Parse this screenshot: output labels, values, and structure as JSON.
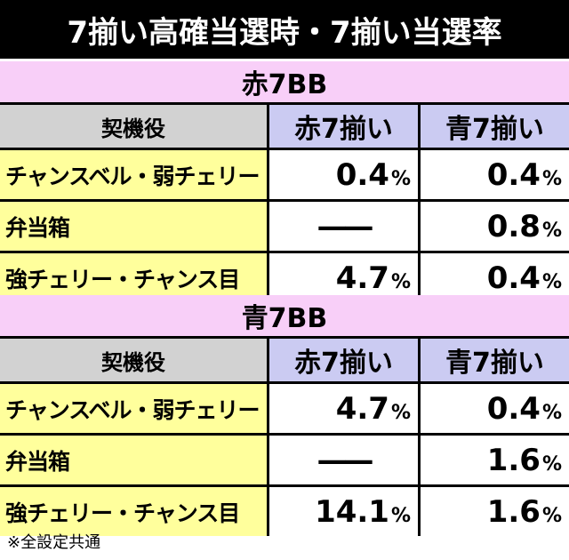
{
  "title": "7揃い高確当選時・7揃い当選率",
  "sections": [
    {
      "name": "赤7BB",
      "header": [
        "契機役",
        "赤7揃い",
        "青7揃い"
      ],
      "rows": [
        {
          "label": "チャンスベル・弱チェリー",
          "cells": [
            {
              "value": "0.4",
              "unit": "%"
            },
            {
              "value": "0.4",
              "unit": "%"
            }
          ]
        },
        {
          "label": "弁当箱",
          "cells": [
            {
              "value": "——"
            },
            {
              "value": "0.8",
              "unit": "%"
            }
          ]
        },
        {
          "label": "強チェリー・チャンス目",
          "cells": [
            {
              "value": "4.7",
              "unit": "%"
            },
            {
              "value": "0.4",
              "unit": "%"
            }
          ]
        }
      ]
    },
    {
      "name": "青7BB",
      "header": [
        "契機役",
        "赤7揃い",
        "青7揃い"
      ],
      "rows": [
        {
          "label": "チャンスベル・弱チェリー",
          "cells": [
            {
              "value": "4.7",
              "unit": "%"
            },
            {
              "value": "0.4",
              "unit": "%"
            }
          ]
        },
        {
          "label": "弁当箱",
          "cells": [
            {
              "value": "——"
            },
            {
              "value": "1.6",
              "unit": "%"
            }
          ]
        },
        {
          "label": "強チェリー・チャンス目",
          "cells": [
            {
              "value": "14.1",
              "unit": "%"
            },
            {
              "value": "1.6",
              "unit": "%"
            }
          ]
        }
      ]
    }
  ],
  "footnote": "※全設定共通"
}
